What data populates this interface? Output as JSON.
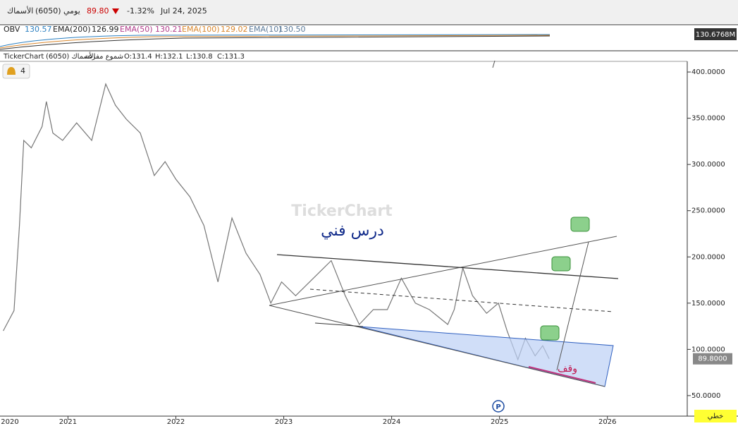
{
  "header": {
    "name": "الأسماك",
    "code": "(6050)",
    "period": "يومي",
    "price": "89.80",
    "change": "-1.32%",
    "date": "Jul 24, 2025"
  },
  "indicator": {
    "obv_label": "OBV",
    "obv_value": "130.57",
    "ema200_label": "EMA(200)",
    "ema200_value": "126.99",
    "ema50_label": "EMA(50)",
    "ema50_value": "130.21",
    "ema100_label": "EMA(100)",
    "ema100_value": "129.02",
    "ema10_label": "EMA(10)",
    "ema10_value": "130.50",
    "last_label": "130.6768M"
  },
  "info": {
    "brand": "TickerChart",
    "symbol": "الأسماك (6050)",
    "style": "شموع مفرغة",
    "open": "O:131.4",
    "high": "H:132.1",
    "low": "L:130.8",
    "close": "C:131.3",
    "alerts": "4"
  },
  "annotations": {
    "lesson": "درس فني",
    "stop": "وقف",
    "watermark": "TickerChart",
    "p_marker": "P",
    "scale_mode": "خطي"
  },
  "chart_data": {
    "type": "line",
    "color": "#777777",
    "grid": false,
    "x": [
      2020.4,
      2020.5,
      2020.55,
      2020.59,
      2020.66,
      2020.76,
      2020.8,
      2020.86,
      2020.95,
      2021.08,
      2021.22,
      2021.35,
      2021.44,
      2021.54,
      2021.67,
      2021.8,
      2021.9,
      2022.0,
      2022.13,
      2022.26,
      2022.39,
      2022.52,
      2022.65,
      2022.78,
      2022.88,
      2022.98,
      2023.11,
      2023.24,
      2023.44,
      2023.57,
      2023.7,
      2023.83,
      2023.96,
      2024.09,
      2024.22,
      2024.35,
      2024.52,
      2024.58,
      2024.66,
      2024.75,
      2024.88,
      2024.99,
      2025.07,
      2025.17,
      2025.24,
      2025.33,
      2025.4,
      2025.46
    ],
    "values": [
      120,
      142,
      234,
      326,
      318,
      341,
      368,
      334,
      326,
      345,
      326,
      387,
      364,
      349,
      334,
      288,
      303,
      284,
      265,
      234,
      173,
      242,
      204,
      181,
      150,
      173,
      158,
      173,
      196,
      158,
      127,
      143,
      143,
      177,
      150,
      143,
      127,
      143,
      188,
      158,
      139,
      150,
      120,
      89,
      112,
      93,
      104,
      89.8
    ],
    "last_value": 89.8,
    "last_value_label": "89.8000",
    "xlim": [
      2020.37,
      2026.74
    ],
    "xticks": [
      2020,
      2021,
      2022,
      2023,
      2024,
      2025,
      2026
    ],
    "ylim": [
      27.8,
      411.5
    ],
    "yticks": [
      {
        "value": 50,
        "label": "50.0000"
      },
      {
        "value": 100,
        "label": "100.0000"
      },
      {
        "value": 150,
        "label": "150.0000"
      },
      {
        "value": 200,
        "label": "200.0000"
      },
      {
        "value": 250,
        "label": "250.0000"
      },
      {
        "value": 300,
        "label": "300.0000"
      },
      {
        "value": 350,
        "label": "350.0000"
      },
      {
        "value": 400,
        "label": "400.0000"
      }
    ]
  }
}
